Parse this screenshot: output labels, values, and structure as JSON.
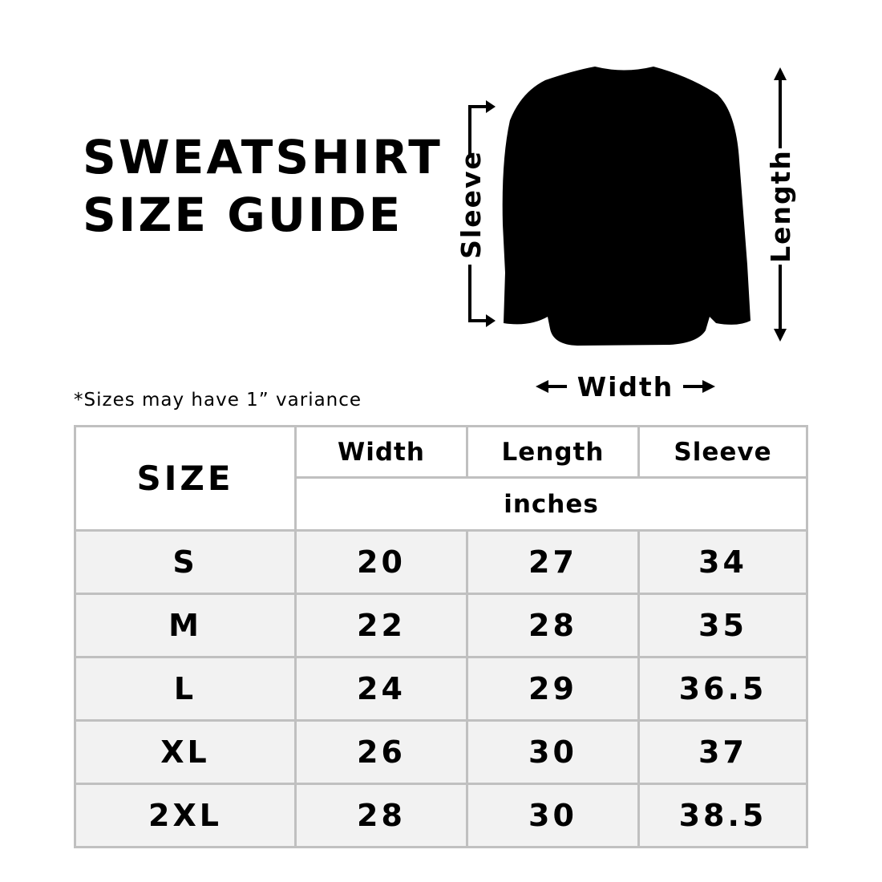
{
  "title": {
    "line1": "SWEATSHIRT",
    "line2": "SIZE GUIDE"
  },
  "note": "*Sizes may have 1” variance",
  "diagram": {
    "sleeve_label": "Sleeve",
    "length_label": "Length",
    "width_label": "Width",
    "garment_color": "#000000"
  },
  "table": {
    "size_header": "SIZE",
    "columns": [
      "Width",
      "Length",
      "Sleeve"
    ],
    "unit": "inches",
    "row_bg": "#f2f2f2",
    "border_color": "#c0c0c0",
    "rows": [
      {
        "size": "S",
        "values": [
          "20",
          "27",
          "34"
        ]
      },
      {
        "size": "M",
        "values": [
          "22",
          "28",
          "35"
        ]
      },
      {
        "size": "L",
        "values": [
          "24",
          "29",
          "36.5"
        ]
      },
      {
        "size": "XL",
        "values": [
          "26",
          "30",
          "37"
        ]
      },
      {
        "size": "2XL",
        "values": [
          "28",
          "30",
          "38.5"
        ]
      }
    ]
  }
}
